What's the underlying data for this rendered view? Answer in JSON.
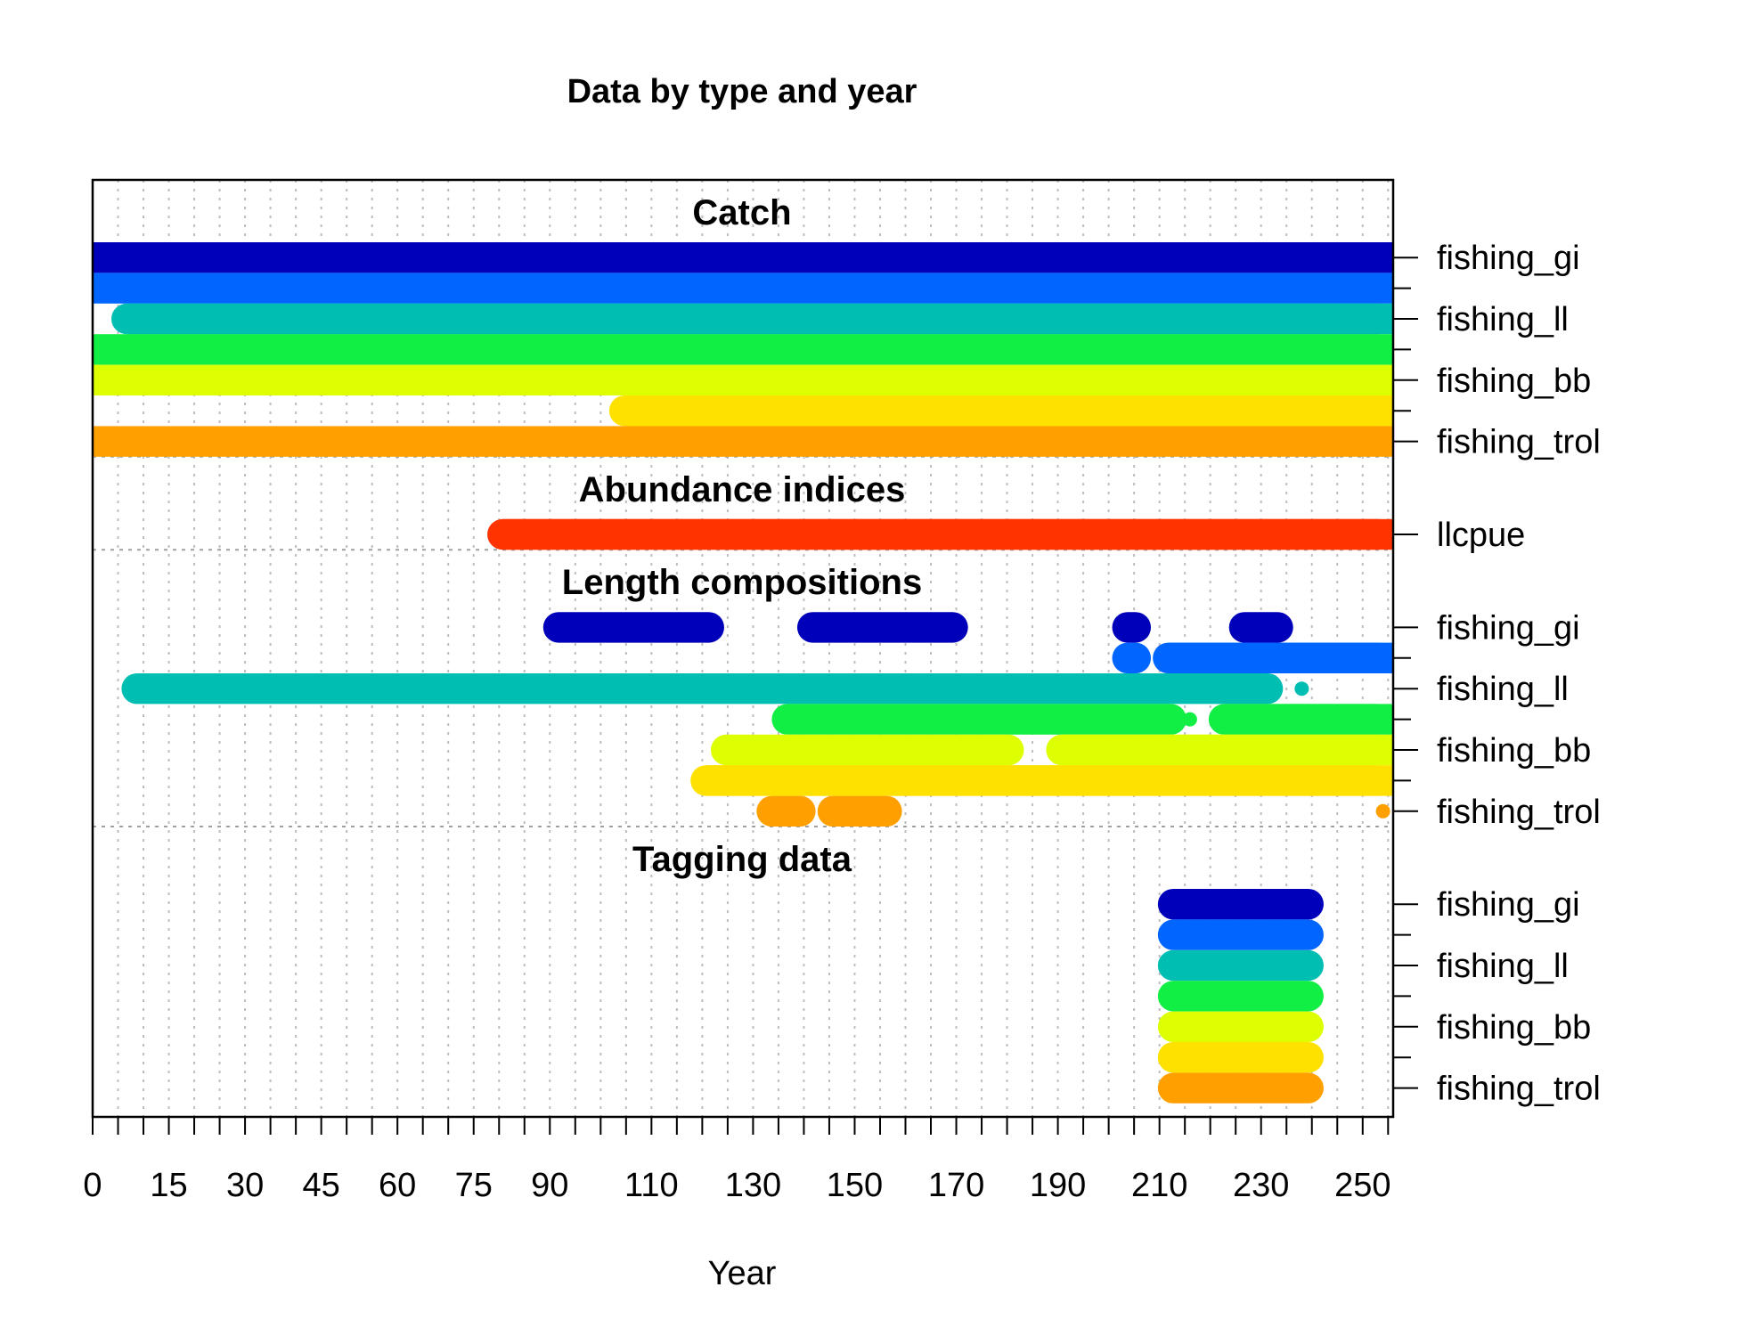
{
  "chart_data": {
    "type": "timeline",
    "title": "Data by type and year",
    "xlabel": "Year",
    "xlim": [
      0,
      256
    ],
    "x_ticks": [
      0,
      15,
      30,
      45,
      60,
      75,
      90,
      110,
      130,
      150,
      170,
      190,
      210,
      230,
      250
    ],
    "minor_tick_step": 5,
    "grid": "dotted",
    "colors": {
      "fishing_gi": "#0000BB",
      "fishing_gi_2": "#0066FF",
      "fishing_ll": "#00BFB2",
      "fishing_ll_2": "#11EE44",
      "fishing_bb": "#DDFF00",
      "fishing_bb_2": "#FFE100",
      "fishing_trol": "#FFA000",
      "llcpue": "#FF3300"
    },
    "sections": [
      {
        "name": "Catch",
        "fleets": [
          {
            "label": "fishing_gi",
            "color": "#0000BB",
            "segments": [
              [
                0,
                256
              ]
            ]
          },
          {
            "label": "",
            "color": "#0066FF",
            "segments": [
              [
                0,
                256
              ]
            ]
          },
          {
            "label": "fishing_ll",
            "color": "#00BFB2",
            "segments": [
              [
                6,
                256
              ]
            ]
          },
          {
            "label": "",
            "color": "#11EE44",
            "segments": [
              [
                0,
                256
              ]
            ]
          },
          {
            "label": "fishing_bb",
            "color": "#DDFF00",
            "segments": [
              [
                0,
                256
              ]
            ]
          },
          {
            "label": "",
            "color": "#FFE100",
            "segments": [
              [
                104,
                256
              ]
            ]
          },
          {
            "label": "fishing_trol",
            "color": "#FFA000",
            "segments": [
              [
                0,
                256
              ]
            ]
          }
        ]
      },
      {
        "name": "Abundance indices",
        "fleets": [
          {
            "label": "llcpue",
            "color": "#FF3300",
            "segments": [
              [
                80,
                256
              ]
            ]
          }
        ]
      },
      {
        "name": "Length compositions",
        "fleets": [
          {
            "label": "fishing_gi",
            "color": "#0000BB",
            "segments": [
              [
                91,
                122
              ],
              [
                141,
                170
              ],
              [
                203,
                206
              ],
              [
                226,
                234
              ]
            ]
          },
          {
            "label": "",
            "color": "#0066FF",
            "segments": [
              [
                203,
                206
              ],
              [
                211,
                256
              ]
            ]
          },
          {
            "label": "fishing_ll",
            "color": "#00BFB2",
            "segments": [
              [
                8,
                232
              ]
            ],
            "points": [
              {
                "x": 238,
                "size": "small"
              }
            ]
          },
          {
            "label": "",
            "color": "#11EE44",
            "segments": [
              [
                136,
                213
              ],
              [
                222,
                256
              ]
            ],
            "points": [
              {
                "x": 216,
                "size": "small"
              }
            ]
          },
          {
            "label": "fishing_bb",
            "color": "#DDFF00",
            "segments": [
              [
                124,
                181
              ],
              [
                190,
                256
              ]
            ]
          },
          {
            "label": "",
            "color": "#FFE100",
            "segments": [
              [
                120,
                256
              ]
            ]
          },
          {
            "label": "fishing_trol",
            "color": "#FFA000",
            "segments": [
              [
                133,
                140
              ],
              [
                145,
                157
              ]
            ],
            "points": [
              {
                "x": 254,
                "size": "small"
              }
            ]
          }
        ]
      },
      {
        "name": "Tagging data",
        "fleets": [
          {
            "label": "fishing_gi",
            "color": "#0000BB",
            "segments": [
              [
                212,
                240
              ]
            ]
          },
          {
            "label": "",
            "color": "#0066FF",
            "segments": [
              [
                212,
                240
              ]
            ]
          },
          {
            "label": "fishing_ll",
            "color": "#00BFB2",
            "segments": [
              [
                212,
                240
              ]
            ]
          },
          {
            "label": "",
            "color": "#11EE44",
            "segments": [
              [
                212,
                240
              ]
            ]
          },
          {
            "label": "fishing_bb",
            "color": "#DDFF00",
            "segments": [
              [
                212,
                240
              ]
            ]
          },
          {
            "label": "",
            "color": "#FFE100",
            "segments": [
              [
                212,
                240
              ]
            ]
          },
          {
            "label": "fishing_trol",
            "color": "#FFA000",
            "segments": [
              [
                212,
                240
              ]
            ]
          }
        ]
      }
    ]
  }
}
